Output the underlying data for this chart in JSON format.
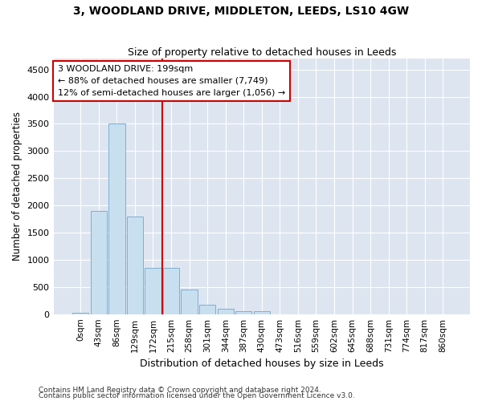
{
  "title": "3, WOODLAND DRIVE, MIDDLETON, LEEDS, LS10 4GW",
  "subtitle": "Size of property relative to detached houses in Leeds",
  "xlabel": "Distribution of detached houses by size in Leeds",
  "ylabel": "Number of detached properties",
  "footnote1": "Contains HM Land Registry data © Crown copyright and database right 2024.",
  "footnote2": "Contains public sector information licensed under the Open Government Licence v3.0.",
  "bar_labels": [
    "0sqm",
    "43sqm",
    "86sqm",
    "129sqm",
    "172sqm",
    "215sqm",
    "258sqm",
    "301sqm",
    "344sqm",
    "387sqm",
    "430sqm",
    "473sqm",
    "516sqm",
    "559sqm",
    "602sqm",
    "645sqm",
    "688sqm",
    "731sqm",
    "774sqm",
    "817sqm",
    "860sqm"
  ],
  "bar_values": [
    30,
    1900,
    3500,
    1800,
    850,
    850,
    450,
    175,
    100,
    60,
    50,
    0,
    0,
    0,
    0,
    0,
    0,
    0,
    0,
    0,
    0
  ],
  "bar_color": "#c8dff0",
  "bar_edgecolor": "#7bafd4",
  "bg_color": "#dde5f0",
  "grid_color": "#ffffff",
  "vline_x": 5,
  "vline_color": "#cc0000",
  "annotation_line1": "3 WOODLAND DRIVE: 199sqm",
  "annotation_line2": "← 88% of detached houses are smaller (7,749)",
  "annotation_line3": "12% of semi-detached houses are larger (1,056) →",
  "annotation_box_color": "#cc0000",
  "ylim": [
    0,
    4700
  ],
  "yticks": [
    0,
    500,
    1000,
    1500,
    2000,
    2500,
    3000,
    3500,
    4000,
    4500
  ]
}
